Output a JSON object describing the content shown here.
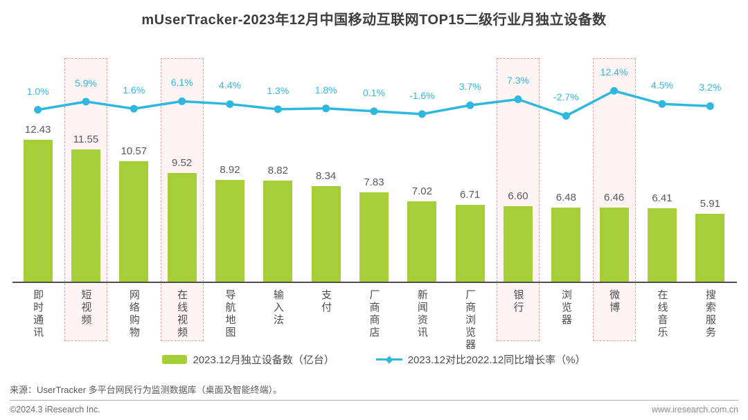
{
  "title": "mUserTracker-2023年12月中国移动互联网TOP15二级行业月独立设备数",
  "chart_data": {
    "type": "bar+line",
    "categories": [
      "即时通讯",
      "短视频",
      "网络购物",
      "在线视频",
      "导航地图",
      "输入法",
      "支付",
      "厂商商店",
      "新闻资讯",
      "厂商浏览器",
      "银行",
      "浏览器",
      "微博",
      "在线音乐",
      "搜索服务"
    ],
    "series": [
      {
        "name": "2023.12月独立设备数（亿台）",
        "type": "bar",
        "color": "#a6ce39",
        "values": [
          12.43,
          11.55,
          10.57,
          9.52,
          8.92,
          8.82,
          8.34,
          7.83,
          7.02,
          6.71,
          6.6,
          6.48,
          6.46,
          6.41,
          5.91
        ],
        "labels": [
          "12.43",
          "11.55",
          "10.57",
          "9.52",
          "8.92",
          "8.82",
          "8.34",
          "7.83",
          "7.02",
          "6.71",
          "6.60",
          "6.48",
          "6.46",
          "6.41",
          "5.91"
        ]
      },
      {
        "name": "2023.12对比2022.12同比增长率（%）",
        "type": "line",
        "color": "#2fb8df",
        "values": [
          1.0,
          5.9,
          1.6,
          6.1,
          4.4,
          1.3,
          1.8,
          0.1,
          -1.6,
          3.7,
          7.3,
          -2.7,
          12.4,
          4.5,
          3.2
        ],
        "labels": [
          "1.0%",
          "5.9%",
          "1.6%",
          "6.1%",
          "4.4%",
          "1.3%",
          "1.8%",
          "0.1%",
          "-1.6%",
          "3.7%",
          "7.3%",
          "-2.7%",
          "12.4%",
          "4.5%",
          "3.2%"
        ]
      }
    ],
    "highlighted_categories": [
      "短视频",
      "在线视频",
      "银行",
      "微博"
    ],
    "highlight_style": {
      "background": "#fdf4f3",
      "border_color": "#e2a19e"
    },
    "grid": false,
    "value_axis_visible": false,
    "legend_position": "bottom"
  },
  "footer": {
    "source": "来源：UserTracker 多平台网民行为监测数据库（桌面及智能终端）。",
    "copyright": "©2024.3 iResearch Inc.",
    "website": "www.iresearch.com.cn"
  }
}
